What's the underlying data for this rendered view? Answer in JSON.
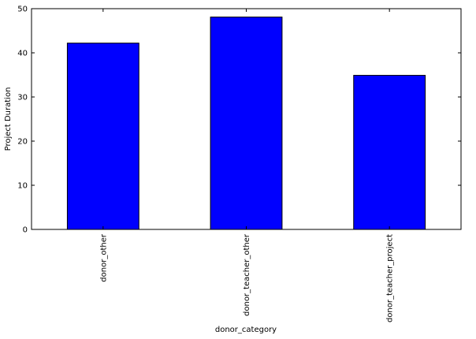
{
  "chart_data": {
    "type": "bar",
    "title": "",
    "xlabel": "donor_category",
    "ylabel": "Project Duration",
    "categories": [
      "donor_other",
      "donor_teacher_other",
      "donor_teacher_project"
    ],
    "values": [
      42.2,
      48.1,
      34.9
    ],
    "ylim": [
      0,
      50
    ],
    "yticks": [
      "0",
      "10",
      "20",
      "30",
      "40",
      "50"
    ],
    "bar_color": "#0000ff",
    "grid": false,
    "legend": "none"
  }
}
